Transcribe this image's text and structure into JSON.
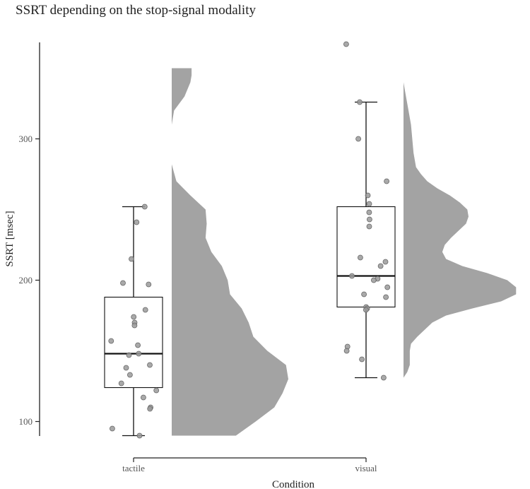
{
  "chart_data": {
    "type": "raincloud",
    "title": "SSRT depending on the stop-signal modality",
    "xlabel": "Condition",
    "ylabel": "SSRT [msec]",
    "ylim": [
      89,
      370
    ],
    "yticks": [
      100,
      200,
      300
    ],
    "grid": false,
    "categories": [
      "tactile",
      "visual"
    ],
    "colors": {
      "density_fill": "#a3a3a3",
      "point_fill": "#9a9a9a",
      "point_stroke": "#666666",
      "box_stroke": "#111111",
      "axis": "#222222"
    },
    "series": [
      {
        "category": "tactile",
        "boxplot": {
          "whisker_low": 90,
          "q1": 124,
          "median": 148,
          "q3": 188,
          "whisker_high": 252
        },
        "points": [
          252,
          241,
          215,
          198,
          197,
          179,
          174,
          170,
          168,
          157,
          154,
          148,
          147,
          140,
          138,
          133,
          127,
          122,
          117,
          110,
          109,
          95,
          90
        ],
        "density": [
          [
            90,
            0.55
          ],
          [
            100,
            0.72
          ],
          [
            110,
            0.88
          ],
          [
            120,
            0.95
          ],
          [
            130,
            1.0
          ],
          [
            140,
            0.98
          ],
          [
            150,
            0.82
          ],
          [
            160,
            0.7
          ],
          [
            170,
            0.66
          ],
          [
            180,
            0.6
          ],
          [
            190,
            0.5
          ],
          [
            200,
            0.48
          ],
          [
            210,
            0.43
          ],
          [
            220,
            0.34
          ],
          [
            230,
            0.29
          ],
          [
            240,
            0.3
          ],
          [
            250,
            0.29
          ],
          [
            260,
            0.16
          ],
          [
            270,
            0.04
          ],
          [
            282,
            0.0
          ],
          [
            290,
            0.0
          ],
          [
            300,
            0.0
          ],
          [
            310,
            0.0
          ],
          [
            320,
            0.02
          ],
          [
            330,
            0.11
          ],
          [
            340,
            0.16
          ],
          [
            345,
            0.17
          ],
          [
            350,
            0.17
          ]
        ]
      },
      {
        "category": "visual",
        "boxplot": {
          "whisker_low": 131,
          "q1": 181,
          "median": 203,
          "q3": 252,
          "whisker_high": 326
        },
        "points": [
          367,
          326,
          300,
          270,
          260,
          254,
          248,
          243,
          238,
          216,
          213,
          210,
          203,
          201,
          200,
          195,
          190,
          188,
          181,
          180,
          179,
          153,
          150,
          144,
          131
        ],
        "density": [
          [
            131,
            0.0
          ],
          [
            135,
            0.03
          ],
          [
            140,
            0.05
          ],
          [
            145,
            0.05
          ],
          [
            150,
            0.05
          ],
          [
            155,
            0.06
          ],
          [
            160,
            0.11
          ],
          [
            165,
            0.17
          ],
          [
            170,
            0.23
          ],
          [
            175,
            0.34
          ],
          [
            180,
            0.55
          ],
          [
            185,
            0.78
          ],
          [
            190,
            0.9
          ],
          [
            195,
            0.9
          ],
          [
            200,
            0.83
          ],
          [
            205,
            0.67
          ],
          [
            210,
            0.47
          ],
          [
            215,
            0.34
          ],
          [
            220,
            0.31
          ],
          [
            225,
            0.33
          ],
          [
            230,
            0.38
          ],
          [
            235,
            0.44
          ],
          [
            240,
            0.5
          ],
          [
            245,
            0.52
          ],
          [
            250,
            0.51
          ],
          [
            255,
            0.45
          ],
          [
            260,
            0.37
          ],
          [
            265,
            0.27
          ],
          [
            270,
            0.19
          ],
          [
            275,
            0.14
          ],
          [
            280,
            0.1
          ],
          [
            290,
            0.08
          ],
          [
            300,
            0.07
          ],
          [
            310,
            0.06
          ],
          [
            320,
            0.04
          ],
          [
            330,
            0.02
          ],
          [
            340,
            0.0
          ],
          [
            350,
            0.0
          ],
          [
            360,
            0.0
          ],
          [
            367,
            0.0
          ]
        ]
      }
    ]
  }
}
